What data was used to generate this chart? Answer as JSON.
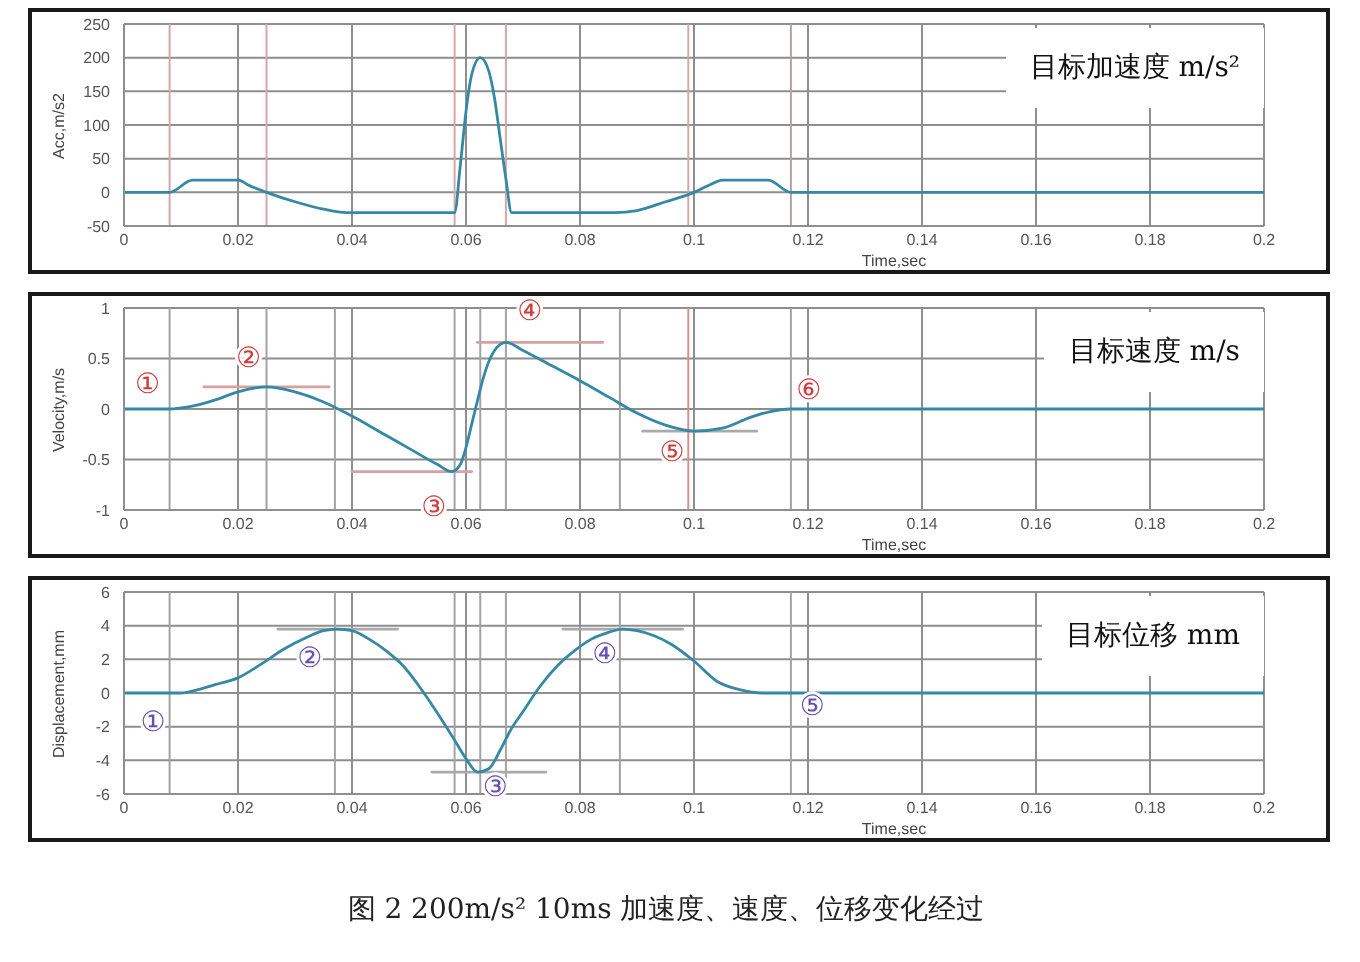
{
  "chart_data": [
    {
      "type": "line",
      "title": "目标加速度 m/s²",
      "xlabel": "Time,sec",
      "ylabel": "Acc,m/s2",
      "series": [
        {
          "color": "#3589a6",
          "x": [
            0,
            0.008,
            0.012,
            0.02,
            0.022,
            0.025,
            0.03,
            0.035,
            0.039,
            0.058,
            0.059,
            0.06,
            0.061,
            0.0625,
            0.064,
            0.065,
            0.066,
            0.067,
            0.068,
            0.086,
            0.09,
            0.095,
            0.1,
            0.103,
            0.105,
            0.113,
            0.117,
            0.2
          ],
          "values": [
            0,
            0,
            18,
            18,
            10,
            0,
            -14,
            -25,
            -30,
            -30,
            40,
            120,
            175,
            200,
            180,
            140,
            80,
            20,
            -30,
            -30,
            -27,
            -14,
            0,
            12,
            18,
            18,
            0,
            0
          ]
        }
      ],
      "xlim": [
        0,
        0.2
      ],
      "xticks": [
        0,
        0.02,
        0.04,
        0.06,
        0.08,
        0.1,
        0.12,
        0.14,
        0.16,
        0.18,
        0.2
      ],
      "ylim": [
        -50,
        250
      ],
      "yticks": [
        -50,
        0,
        50,
        100,
        150,
        200,
        250
      ],
      "grid": true,
      "ref_lines": [
        {
          "axis": "x",
          "value": 0.008,
          "color": "#d7a6a6"
        },
        {
          "axis": "x",
          "value": 0.025,
          "color": "#d7a6a6"
        },
        {
          "axis": "x",
          "value": 0.058,
          "color": "#d7a6a6"
        },
        {
          "axis": "x",
          "value": 0.067,
          "color": "#d7a6a6"
        },
        {
          "axis": "x",
          "value": 0.099,
          "color": "#d7a6a6"
        },
        {
          "axis": "x",
          "value": 0.117,
          "color": "#b8a0a0"
        }
      ]
    },
    {
      "type": "line",
      "title": "目标速度 m/s",
      "xlabel": "Time,sec",
      "ylabel": "Velocity,m/s",
      "series": [
        {
          "color": "#d9a0a0",
          "x": [
            0.014,
            0.036
          ],
          "values": [
            0.22,
            0.22
          ]
        },
        {
          "color": "#d9a0a0",
          "x": [
            0.04,
            0.061
          ],
          "values": [
            -0.62,
            -0.62
          ]
        },
        {
          "color": "#d9a0a0",
          "x": [
            0.062,
            0.084
          ],
          "values": [
            0.66,
            0.66
          ]
        },
        {
          "color": "#aaaaaa",
          "x": [
            0.091,
            0.111
          ],
          "values": [
            -0.22,
            -0.22
          ]
        },
        {
          "color": "#3589a6",
          "x": [
            0,
            0.008,
            0.01,
            0.013,
            0.016,
            0.02,
            0.025,
            0.03,
            0.035,
            0.04,
            0.045,
            0.05,
            0.055,
            0.0575,
            0.059,
            0.06,
            0.061,
            0.062,
            0.063,
            0.064,
            0.065,
            0.066,
            0.067,
            0.07,
            0.075,
            0.08,
            0.085,
            0.09,
            0.095,
            0.1,
            0.105,
            0.11,
            0.113,
            0.117,
            0.2
          ],
          "values": [
            0,
            0,
            0.01,
            0.04,
            0.09,
            0.17,
            0.22,
            0.17,
            0.07,
            -0.07,
            -0.23,
            -0.39,
            -0.55,
            -0.62,
            -0.55,
            -0.38,
            -0.15,
            0.08,
            0.3,
            0.47,
            0.58,
            0.64,
            0.66,
            0.58,
            0.43,
            0.28,
            0.12,
            -0.04,
            -0.16,
            -0.22,
            -0.19,
            -0.08,
            -0.03,
            0,
            0
          ]
        }
      ],
      "xlim": [
        0,
        0.2
      ],
      "xticks": [
        0,
        0.02,
        0.04,
        0.06,
        0.08,
        0.1,
        0.12,
        0.14,
        0.16,
        0.18,
        0.2
      ],
      "ylim": [
        -1,
        1
      ],
      "yticks": [
        -1,
        -0.5,
        0,
        0.5,
        1
      ],
      "grid": true,
      "ref_lines": [
        {
          "axis": "x",
          "value": 0.008,
          "color": "#a3a3a3"
        },
        {
          "axis": "x",
          "value": 0.025,
          "color": "#a3a3a3"
        },
        {
          "axis": "x",
          "value": 0.037,
          "color": "#a3a3a3"
        },
        {
          "axis": "x",
          "value": 0.058,
          "color": "#a3a3a3"
        },
        {
          "axis": "x",
          "value": 0.0625,
          "color": "#a3a3a3"
        },
        {
          "axis": "x",
          "value": 0.067,
          "color": "#a3a3a3"
        },
        {
          "axis": "x",
          "value": 0.087,
          "color": "#a3a3a3"
        },
        {
          "axis": "x",
          "value": 0.099,
          "color": "#d98f8f"
        },
        {
          "axis": "x",
          "value": 0.117,
          "color": "#a3a3a3"
        }
      ],
      "annotations": [
        {
          "text": "①",
          "x": 0.008,
          "y": 0
        },
        {
          "text": "②",
          "x": 0.025,
          "y": 0.22
        },
        {
          "text": "③",
          "x": 0.0575,
          "y": -0.62
        },
        {
          "text": "④",
          "x": 0.067,
          "y": 0.66
        },
        {
          "text": "⑤",
          "x": 0.1,
          "y": -0.22
        },
        {
          "text": "⑥",
          "x": 0.117,
          "y": 0
        }
      ]
    },
    {
      "type": "line",
      "title": "目标位移 mm",
      "xlabel": "Time,sec",
      "ylabel": "Displacement,mm",
      "series": [
        {
          "color": "#aaaaaa",
          "x": [
            0.027,
            0.048
          ],
          "values": [
            3.8,
            3.8
          ]
        },
        {
          "color": "#aaaaaa",
          "x": [
            0.054,
            0.074
          ],
          "values": [
            -4.7,
            -4.7
          ]
        },
        {
          "color": "#aaaaaa",
          "x": [
            0.077,
            0.098
          ],
          "values": [
            3.8,
            3.8
          ]
        },
        {
          "color": "#3589a6",
          "x": [
            0,
            0.01,
            0.013,
            0.016,
            0.02,
            0.024,
            0.028,
            0.032,
            0.035,
            0.0375,
            0.04,
            0.043,
            0.046,
            0.049,
            0.052,
            0.055,
            0.058,
            0.06,
            0.062,
            0.064,
            0.066,
            0.068,
            0.07,
            0.073,
            0.076,
            0.079,
            0.082,
            0.085,
            0.0875,
            0.09,
            0.093,
            0.096,
            0.1,
            0.104,
            0.108,
            0.112,
            0.2
          ],
          "values": [
            0,
            0,
            0.2,
            0.5,
            0.9,
            1.7,
            2.6,
            3.3,
            3.7,
            3.8,
            3.7,
            3.2,
            2.5,
            1.6,
            0.3,
            -1.2,
            -2.8,
            -3.9,
            -4.7,
            -4.5,
            -3.4,
            -2.1,
            -1.1,
            0.4,
            1.6,
            2.5,
            3.2,
            3.6,
            3.8,
            3.7,
            3.4,
            2.9,
            1.9,
            0.7,
            0.2,
            0,
            0
          ]
        }
      ],
      "xlim": [
        0,
        0.2
      ],
      "xticks": [
        0,
        0.02,
        0.04,
        0.06,
        0.08,
        0.1,
        0.12,
        0.14,
        0.16,
        0.18,
        0.2
      ],
      "ylim": [
        -6,
        6
      ],
      "yticks": [
        -6,
        -4,
        -2,
        0,
        2,
        4,
        6
      ],
      "grid": true,
      "ref_lines": [
        {
          "axis": "x",
          "value": 0.008,
          "color": "#a3a3a3"
        },
        {
          "axis": "x",
          "value": 0.037,
          "color": "#a3a3a3"
        },
        {
          "axis": "x",
          "value": 0.058,
          "color": "#a3a3a3"
        },
        {
          "axis": "x",
          "value": 0.0625,
          "color": "#a3a3a3"
        },
        {
          "axis": "x",
          "value": 0.067,
          "color": "#a3a3a3"
        },
        {
          "axis": "x",
          "value": 0.087,
          "color": "#a3a3a3"
        },
        {
          "axis": "x",
          "value": 0.117,
          "color": "#a3a3a3"
        }
      ],
      "annotations": [
        {
          "text": "①",
          "x": 0.01,
          "y": 0
        },
        {
          "text": "②",
          "x": 0.0375,
          "y": 3.8
        },
        {
          "text": "③",
          "x": 0.062,
          "y": -4.7
        },
        {
          "text": "④",
          "x": 0.0875,
          "y": 3.8
        },
        {
          "text": "⑤",
          "x": 0.112,
          "y": 0
        },
        "图 2 200m/s² 10ms 加速度、速度、位移变化经过"
      ]
    }
  ]
}
